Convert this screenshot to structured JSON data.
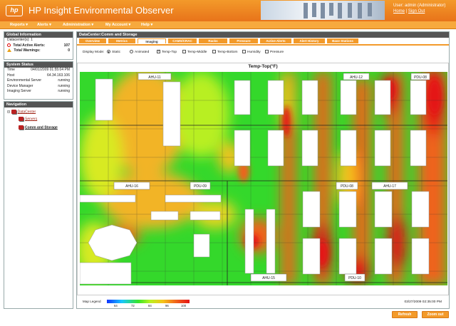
{
  "app": {
    "title": "HP Insight Environmental Observer",
    "logo_text": "hp"
  },
  "user": {
    "line": "User: admin (Administrator)",
    "home": "Home",
    "separator": "|",
    "signout": "Sign Out"
  },
  "menu": [
    "Reports ▾",
    "Alerts ▾",
    "Administration ▾",
    "My Account ▾",
    "Help ▾"
  ],
  "global_info": {
    "header": "Global Information",
    "datacenters_label": "Datacenter(s):",
    "datacenters_value": "1",
    "alerts_label": "Total Active Alerts:",
    "alerts_value": "107",
    "warnings_label": "Total Warnings:",
    "warnings_value": "0"
  },
  "system_status": {
    "header": "System Status",
    "rows": [
      {
        "label": "Time",
        "value": "04/01/2009 01:55:04 PM"
      },
      {
        "label": "Host",
        "value": "64.34.163.106"
      },
      {
        "label": "Environmental Server",
        "value": "running"
      },
      {
        "label": "Device Manager",
        "value": "running"
      },
      {
        "label": "Imaging Server",
        "value": "running"
      }
    ]
  },
  "navigation": {
    "header": "Navigation",
    "root": "DataCenter",
    "items": [
      "Servers",
      "Comm and Storage"
    ]
  },
  "main": {
    "header": "DataCenter:Comm and Storage",
    "tabs": [
      "Overview",
      "Metrics",
      "Imaging",
      "CAMS/CRAC",
      "Racks",
      "Pressure",
      "Active Alerts",
      "Alert History",
      "Base Stations"
    ],
    "active_tab": 2,
    "display_mode_label": "Display Mode:",
    "modes": [
      "Static",
      "Animated"
    ],
    "layers": [
      "Temp-Top",
      "Temp-Middle",
      "Temp-Bottom",
      "Humidity",
      "Pressure"
    ],
    "map_title": "Temp-Top(°F)",
    "units": [
      "AHU-11",
      "AHU-12",
      "PDU-08",
      "AHU-16",
      "PDU-09",
      "PDU-08",
      "AHU-17",
      "AHU-15",
      "PDU-10"
    ],
    "legend_label": "Map Legend",
    "legend_ticks": [
      "64",
      "72",
      "84",
      "96",
      "100"
    ],
    "timestamp": "03/27/2009 02:35:00 PM"
  },
  "buttons": {
    "refresh": "Refresh",
    "zoom_out": "Zoom out"
  },
  "colors": {
    "orange": "#f39a2a",
    "hot": "#e41414",
    "warm": "#f0621b",
    "cool": "#36e52a",
    "cold": "#1035ff"
  }
}
